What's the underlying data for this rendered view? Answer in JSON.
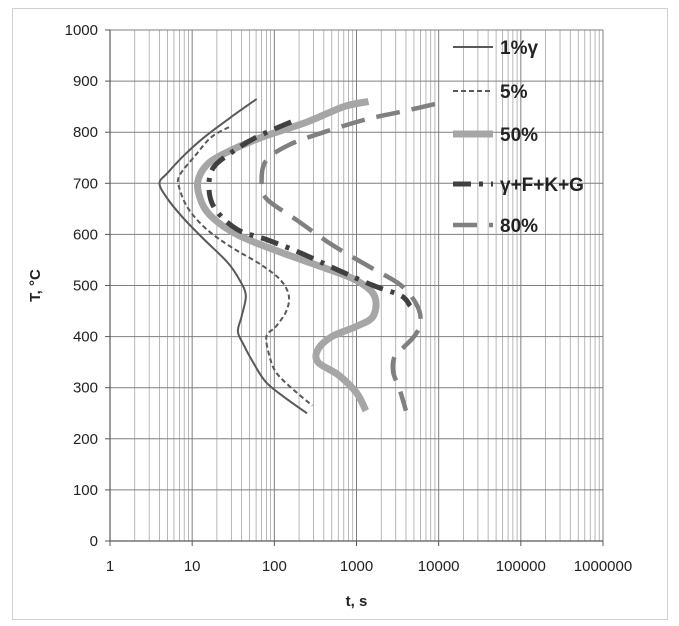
{
  "chart_data": {
    "type": "line",
    "xlabel": "t, s",
    "ylabel": "T, °C",
    "xscale": "log",
    "xlim": [
      1,
      1000000
    ],
    "ylim": [
      0,
      1000
    ],
    "x_ticks": [
      "1",
      "10",
      "100",
      "1000",
      "10000",
      "100000",
      "1000000"
    ],
    "y_ticks": [
      "0",
      "100",
      "200",
      "300",
      "400",
      "500",
      "600",
      "700",
      "800",
      "900",
      "1000"
    ],
    "grid": "on",
    "legend_position": "top-right",
    "series": [
      {
        "name": "1%γ",
        "style": "solid",
        "color": "#595959",
        "points": [
          [
            61,
            865
          ],
          [
            30,
            830
          ],
          [
            14,
            790
          ],
          [
            8,
            755
          ],
          [
            5,
            720
          ],
          [
            4,
            700
          ],
          [
            5,
            670
          ],
          [
            8,
            630
          ],
          [
            14,
            590
          ],
          [
            27,
            545
          ],
          [
            38,
            510
          ],
          [
            45,
            480
          ],
          [
            40,
            440
          ],
          [
            36,
            410
          ],
          [
            42,
            385
          ],
          [
            55,
            350
          ],
          [
            80,
            310
          ],
          [
            150,
            275
          ],
          [
            250,
            250
          ]
        ]
      },
      {
        "name": "5%",
        "style": "dash",
        "color": "#595959",
        "points": [
          [
            28,
            810
          ],
          [
            17,
            790
          ],
          [
            11,
            755
          ],
          [
            7,
            715
          ],
          [
            7,
            690
          ],
          [
            9,
            650
          ],
          [
            15,
            610
          ],
          [
            30,
            575
          ],
          [
            70,
            540
          ],
          [
            120,
            510
          ],
          [
            150,
            480
          ],
          [
            140,
            450
          ],
          [
            105,
            420
          ],
          [
            80,
            400
          ],
          [
            88,
            360
          ],
          [
            105,
            330
          ],
          [
            160,
            300
          ],
          [
            290,
            265
          ]
        ]
      },
      {
        "name": "50%",
        "style": "solid",
        "color": "#a6a6a6",
        "points": [
          [
            1400,
            860
          ],
          [
            700,
            850
          ],
          [
            250,
            820
          ],
          [
            70,
            790
          ],
          [
            30,
            765
          ],
          [
            16,
            740
          ],
          [
            12,
            710
          ],
          [
            12,
            680
          ],
          [
            16,
            640
          ],
          [
            35,
            600
          ],
          [
            120,
            565
          ],
          [
            400,
            535
          ],
          [
            1000,
            510
          ],
          [
            1650,
            480
          ],
          [
            1600,
            440
          ],
          [
            1000,
            420
          ],
          [
            500,
            400
          ],
          [
            340,
            375
          ],
          [
            340,
            350
          ],
          [
            600,
            325
          ],
          [
            1000,
            290
          ],
          [
            1300,
            255
          ]
        ]
      },
      {
        "name": "γ+F+K+G",
        "style": "dash-dot",
        "color": "#404040",
        "points": [
          [
            160,
            820
          ],
          [
            60,
            790
          ],
          [
            30,
            760
          ],
          [
            18,
            730
          ],
          [
            16,
            690
          ],
          [
            19,
            650
          ],
          [
            35,
            610
          ],
          [
            80,
            590
          ],
          [
            200,
            565
          ],
          [
            600,
            530
          ],
          [
            1600,
            500
          ],
          [
            3500,
            480
          ],
          [
            4500,
            460
          ]
        ]
      },
      {
        "name": "80%",
        "style": "long-dash",
        "color": "#808080",
        "points": [
          [
            9000,
            855
          ],
          [
            3500,
            840
          ],
          [
            1300,
            825
          ],
          [
            400,
            800
          ],
          [
            150,
            775
          ],
          [
            80,
            745
          ],
          [
            70,
            705
          ],
          [
            80,
            670
          ],
          [
            180,
            630
          ],
          [
            500,
            580
          ],
          [
            1500,
            535
          ],
          [
            3500,
            500
          ],
          [
            5500,
            460
          ],
          [
            6000,
            425
          ],
          [
            5000,
            400
          ],
          [
            3800,
            380
          ],
          [
            2900,
            360
          ],
          [
            2800,
            330
          ],
          [
            3300,
            300
          ],
          [
            4000,
            255
          ]
        ]
      }
    ]
  }
}
